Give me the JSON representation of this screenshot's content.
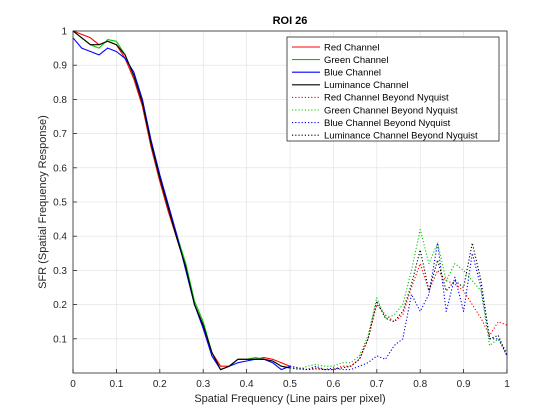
{
  "chart_data": {
    "type": "line",
    "title": "ROI 26",
    "xlabel": "Spatial Frequency (Line pairs per pixel)",
    "ylabel": "SFR (Spatial Frequency Response)",
    "xlim": [
      0,
      1
    ],
    "ylim": [
      0,
      1
    ],
    "xticks": [
      "0",
      "0.1",
      "0.2",
      "0.3",
      "0.4",
      "0.5",
      "0.6",
      "0.7",
      "0.8",
      "0.9",
      "1"
    ],
    "yticks": [
      "0.1",
      "0.2",
      "0.3",
      "0.4",
      "0.5",
      "0.6",
      "0.7",
      "0.8",
      "0.9",
      "1"
    ],
    "grid": true,
    "legend_location": "top-right",
    "series": [
      {
        "name": "Red Channel",
        "color": "#ff0000",
        "style": "solid",
        "x": [
          0,
          0.02,
          0.04,
          0.06,
          0.08,
          0.1,
          0.12,
          0.14,
          0.16,
          0.18,
          0.2,
          0.22,
          0.24,
          0.26,
          0.28,
          0.3,
          0.32,
          0.34,
          0.36,
          0.38,
          0.4,
          0.42,
          0.44,
          0.46,
          0.48,
          0.5
        ],
        "y": [
          1.0,
          0.99,
          0.98,
          0.96,
          0.97,
          0.96,
          0.92,
          0.86,
          0.78,
          0.66,
          0.56,
          0.47,
          0.39,
          0.31,
          0.2,
          0.14,
          0.06,
          0.02,
          0.02,
          0.04,
          0.04,
          0.04,
          0.045,
          0.04,
          0.03,
          0.02
        ]
      },
      {
        "name": "Green Channel",
        "color": "#00c800",
        "style": "solid",
        "x": [
          0,
          0.02,
          0.04,
          0.06,
          0.08,
          0.1,
          0.12,
          0.14,
          0.16,
          0.18,
          0.2,
          0.22,
          0.24,
          0.26,
          0.28,
          0.3,
          0.32,
          0.34,
          0.36,
          0.38,
          0.4,
          0.42,
          0.44,
          0.46,
          0.48,
          0.5
        ],
        "y": [
          1.0,
          0.98,
          0.96,
          0.95,
          0.975,
          0.97,
          0.93,
          0.87,
          0.79,
          0.67,
          0.57,
          0.48,
          0.4,
          0.32,
          0.21,
          0.15,
          0.06,
          0.01,
          0.02,
          0.04,
          0.04,
          0.045,
          0.04,
          0.035,
          0.02,
          0.015
        ]
      },
      {
        "name": "Blue Channel",
        "color": "#0000ff",
        "style": "solid",
        "x": [
          0,
          0.02,
          0.04,
          0.06,
          0.08,
          0.1,
          0.12,
          0.14,
          0.16,
          0.18,
          0.2,
          0.22,
          0.24,
          0.26,
          0.28,
          0.3,
          0.32,
          0.34,
          0.36,
          0.38,
          0.4,
          0.42,
          0.44,
          0.46,
          0.48,
          0.5
        ],
        "y": [
          0.98,
          0.95,
          0.94,
          0.93,
          0.95,
          0.94,
          0.92,
          0.88,
          0.8,
          0.68,
          0.58,
          0.49,
          0.4,
          0.3,
          0.2,
          0.13,
          0.05,
          0.01,
          0.02,
          0.03,
          0.035,
          0.04,
          0.04,
          0.03,
          0.01,
          0.02
        ]
      },
      {
        "name": "Luminance Channel",
        "color": "#000000",
        "style": "solid",
        "x": [
          0,
          0.02,
          0.04,
          0.06,
          0.08,
          0.1,
          0.12,
          0.14,
          0.16,
          0.18,
          0.2,
          0.22,
          0.24,
          0.26,
          0.28,
          0.3,
          0.32,
          0.34,
          0.36,
          0.38,
          0.4,
          0.42,
          0.44,
          0.46,
          0.48,
          0.5
        ],
        "y": [
          1.0,
          0.98,
          0.96,
          0.96,
          0.97,
          0.96,
          0.93,
          0.87,
          0.79,
          0.67,
          0.57,
          0.48,
          0.39,
          0.31,
          0.2,
          0.14,
          0.06,
          0.01,
          0.02,
          0.04,
          0.04,
          0.04,
          0.04,
          0.035,
          0.02,
          0.015
        ]
      },
      {
        "name": "Red Channel Beyond Nyquist",
        "color": "#ff0000",
        "style": "dotted",
        "x": [
          0.5,
          0.52,
          0.54,
          0.56,
          0.58,
          0.6,
          0.62,
          0.64,
          0.66,
          0.68,
          0.7,
          0.72,
          0.74,
          0.76,
          0.78,
          0.8,
          0.82,
          0.84,
          0.86,
          0.88,
          0.9,
          0.92,
          0.94,
          0.96,
          0.98,
          1.0
        ],
        "y": [
          0.02,
          0.015,
          0.01,
          0.015,
          0.01,
          0.01,
          0.02,
          0.02,
          0.04,
          0.1,
          0.2,
          0.17,
          0.15,
          0.17,
          0.25,
          0.32,
          0.24,
          0.3,
          0.27,
          0.26,
          0.24,
          0.2,
          0.16,
          0.11,
          0.15,
          0.14
        ]
      },
      {
        "name": "Green Channel Beyond Nyquist",
        "color": "#00c800",
        "style": "dotted",
        "x": [
          0.5,
          0.52,
          0.54,
          0.56,
          0.58,
          0.6,
          0.62,
          0.64,
          0.66,
          0.68,
          0.7,
          0.72,
          0.74,
          0.76,
          0.78,
          0.8,
          0.82,
          0.84,
          0.86,
          0.88,
          0.9,
          0.92,
          0.94,
          0.96,
          0.98,
          1.0
        ],
        "y": [
          0.015,
          0.01,
          0.02,
          0.025,
          0.02,
          0.02,
          0.03,
          0.03,
          0.05,
          0.11,
          0.22,
          0.16,
          0.17,
          0.2,
          0.3,
          0.42,
          0.32,
          0.38,
          0.27,
          0.32,
          0.3,
          0.27,
          0.24,
          0.08,
          0.1,
          0.06
        ]
      },
      {
        "name": "Blue Channel Beyond Nyquist",
        "color": "#0000ff",
        "style": "dotted",
        "x": [
          0.5,
          0.52,
          0.54,
          0.56,
          0.58,
          0.6,
          0.62,
          0.64,
          0.66,
          0.68,
          0.7,
          0.72,
          0.74,
          0.76,
          0.78,
          0.8,
          0.82,
          0.84,
          0.86,
          0.88,
          0.9,
          0.92,
          0.94,
          0.96,
          0.98,
          1.0
        ],
        "y": [
          0.02,
          0.015,
          0.01,
          0.02,
          0.01,
          0.015,
          0.01,
          0.01,
          0.02,
          0.03,
          0.05,
          0.04,
          0.08,
          0.1,
          0.23,
          0.18,
          0.23,
          0.38,
          0.18,
          0.28,
          0.18,
          0.35,
          0.25,
          0.1,
          0.1,
          0.05
        ]
      },
      {
        "name": "Luminance Channel Beyond Nyquist",
        "color": "#000000",
        "style": "dotted",
        "x": [
          0.5,
          0.52,
          0.54,
          0.56,
          0.58,
          0.6,
          0.62,
          0.64,
          0.66,
          0.68,
          0.7,
          0.72,
          0.74,
          0.76,
          0.78,
          0.8,
          0.82,
          0.84,
          0.86,
          0.88,
          0.9,
          0.92,
          0.94,
          0.96,
          0.98,
          1.0
        ],
        "y": [
          0.015,
          0.012,
          0.01,
          0.012,
          0.01,
          0.01,
          0.015,
          0.02,
          0.04,
          0.1,
          0.21,
          0.16,
          0.15,
          0.18,
          0.26,
          0.36,
          0.24,
          0.33,
          0.24,
          0.27,
          0.25,
          0.38,
          0.27,
          0.1,
          0.11,
          0.05
        ]
      }
    ]
  }
}
